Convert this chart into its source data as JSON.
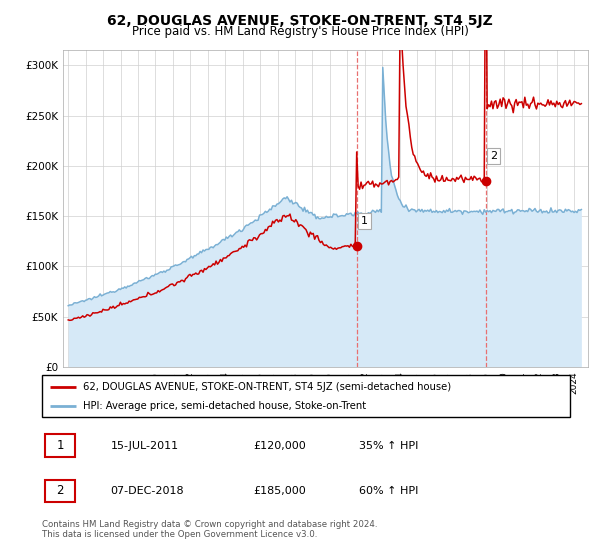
{
  "title": "62, DOUGLAS AVENUE, STOKE-ON-TRENT, ST4 5JZ",
  "subtitle": "Price paid vs. HM Land Registry's House Price Index (HPI)",
  "ylabel_ticks": [
    "£0",
    "£50K",
    "£100K",
    "£150K",
    "£200K",
    "£250K",
    "£300K"
  ],
  "ytick_values": [
    0,
    50000,
    100000,
    150000,
    200000,
    250000,
    300000
  ],
  "ylim": [
    0,
    315000
  ],
  "xlim_start": 1994.7,
  "xlim_end": 2024.8,
  "sale1_date": 2011.54,
  "sale1_price": 120000,
  "sale2_date": 2018.93,
  "sale2_price": 185000,
  "line_color_property": "#cc0000",
  "line_color_hpi": "#7ab0d4",
  "fill_color_hpi": "#d6e9f7",
  "vline_color": "#e87070",
  "legend_line1": "62, DOUGLAS AVENUE, STOKE-ON-TRENT, ST4 5JZ (semi-detached house)",
  "legend_line2": "HPI: Average price, semi-detached house, Stoke-on-Trent",
  "table_row1": [
    "1",
    "15-JUL-2011",
    "£120,000",
    "35% ↑ HPI"
  ],
  "table_row2": [
    "2",
    "07-DEC-2018",
    "£185,000",
    "60% ↑ HPI"
  ],
  "footnote": "Contains HM Land Registry data © Crown copyright and database right 2024.\nThis data is licensed under the Open Government Licence v3.0."
}
